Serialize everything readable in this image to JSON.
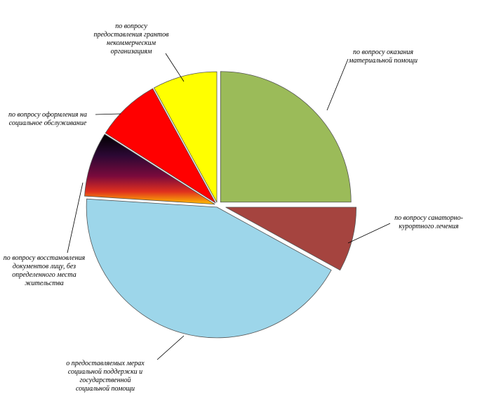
{
  "chart_data": {
    "type": "pie",
    "title": "",
    "colors": {
      "material": "#9BBB59",
      "sanatorium": "#A5443F",
      "social_support": "#9DD6EA",
      "documents_gradient": [
        "#000000",
        "#2B0833",
        "#7A0A3C",
        "#E0301E",
        "#FFC000"
      ],
      "social_service": "#FF0000",
      "grants": "#FFFF00"
    },
    "slices": [
      {
        "key": "material",
        "value": 25,
        "label_lines": [
          "по вопросу оказания",
          "материальной помощи"
        ]
      },
      {
        "key": "sanatorium",
        "value": 8,
        "label_lines": [
          "по вопросу санаторно-",
          "курортного лечения"
        ]
      },
      {
        "key": "social_support",
        "value": 43,
        "label_lines": [
          "о предоставляемых мерах",
          "социальной поддержки и",
          "государственной",
          "социальной помощи"
        ]
      },
      {
        "key": "documents",
        "value": 8,
        "label_lines": [
          "по вопросу восстановления",
          "документов лицу, без",
          "определенного места",
          "жительства"
        ]
      },
      {
        "key": "social_service",
        "value": 8,
        "label_lines": [
          "по вопросу оформления на",
          "социальное обслуживание"
        ]
      },
      {
        "key": "grants",
        "value": 8,
        "label_lines": [
          "по вопросу",
          "предоставления грантов",
          "некоммерческим",
          "организациям"
        ]
      }
    ]
  }
}
